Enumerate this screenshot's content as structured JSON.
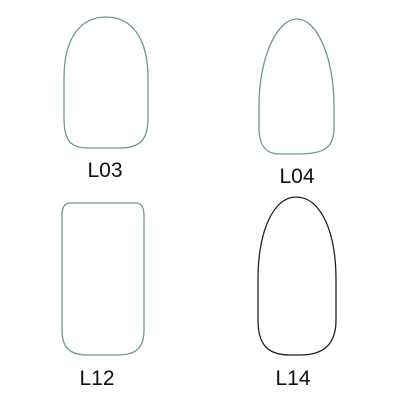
{
  "shapes": [
    {
      "id": "L03",
      "label": "L03",
      "outline": "round",
      "stroke": "#6a9a8a"
    },
    {
      "id": "L04",
      "label": "L04",
      "outline": "oval-pointed",
      "stroke": "#6a9a8a"
    },
    {
      "id": "L12",
      "label": "L12",
      "outline": "square",
      "stroke": "#6a9a8a"
    },
    {
      "id": "L14",
      "label": "L14",
      "outline": "almond",
      "stroke": "#222222"
    }
  ]
}
